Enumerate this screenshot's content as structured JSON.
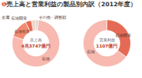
{
  "title": "❶売上高と営業利益の製品別内訳（2012年度）",
  "chart_data": [
    {
      "type": "pie",
      "title": "売上高",
      "total": {
        "value": 43747,
        "label": "4兆3747億円"
      },
      "categories": [
        "その他・調整額",
        "石油",
        "石油化学",
        "石油開発",
        "金属"
      ],
      "values": [
        875,
        34123,
        5687,
        1750,
        1312
      ],
      "colors": [
        "#d9d4d2",
        "#f7b9b0",
        "#f08a70",
        "#e56a55",
        "#f6d6c6"
      ]
    },
    {
      "type": "pie",
      "title": "営業利益",
      "total": {
        "value": 1107,
        "label": "1107億円"
      },
      "categories": [
        "石油開発",
        "石油"
      ],
      "values": [
        387,
        720
      ],
      "colors": [
        "#e56a55",
        "#f7b9b0"
      ]
    }
  ]
}
